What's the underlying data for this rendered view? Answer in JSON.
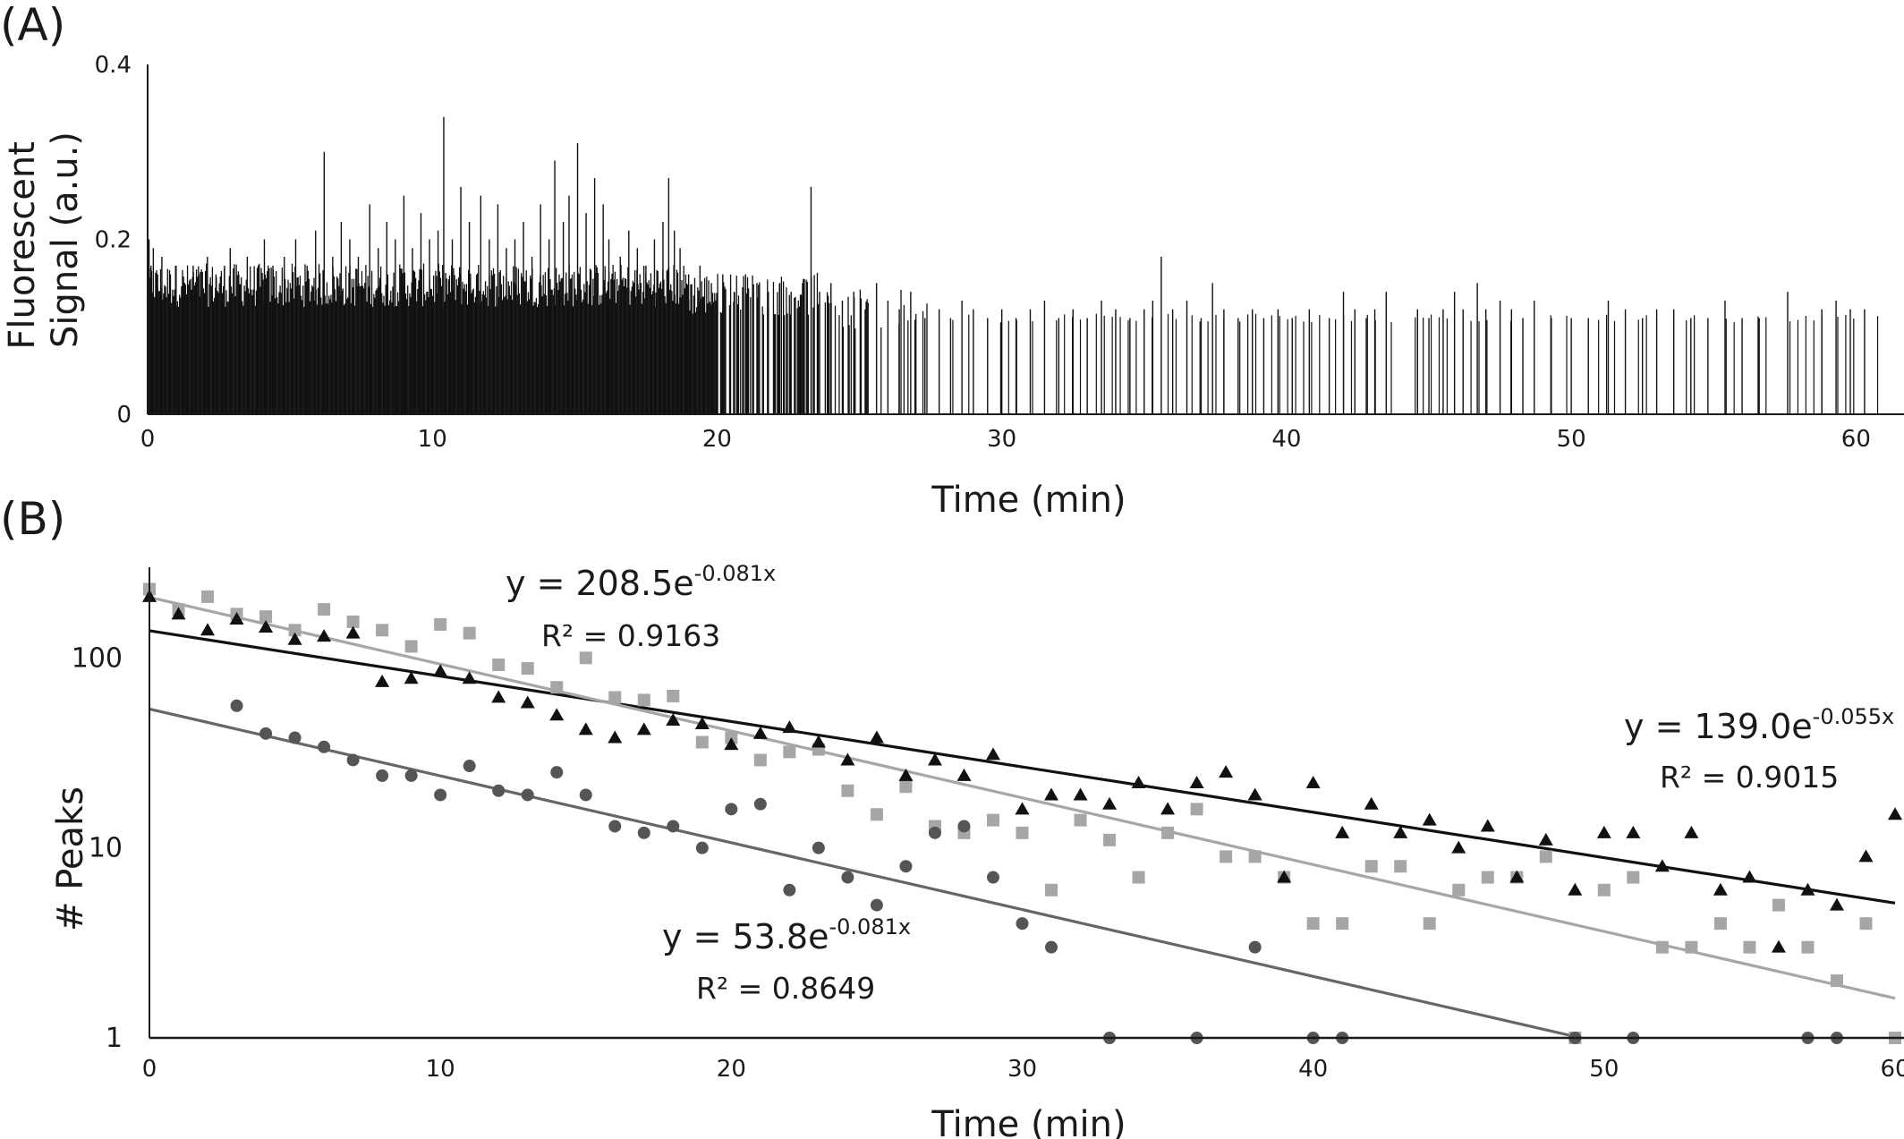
{
  "panel_a": {
    "label": "(A)",
    "chart_data": {
      "type": "bar",
      "title": "",
      "xlabel": "Time (min)",
      "ylabel": "Fluorescent Signal (a.u.)",
      "xlim": [
        0,
        62
      ],
      "ylim": [
        0,
        0.4
      ],
      "x_ticks": [
        "0",
        "10",
        "20",
        "30",
        "40",
        "50",
        "60"
      ],
      "y_ticks": [
        "0",
        "0.2",
        "0.4"
      ],
      "grid": false,
      "series_color": "#111111",
      "peaks": [
        [
          0.05,
          0.2
        ],
        [
          0.12,
          0.17
        ],
        [
          0.2,
          0.19
        ],
        [
          0.35,
          0.16
        ],
        [
          0.5,
          0.18
        ],
        [
          0.8,
          0.16
        ],
        [
          1.0,
          0.17
        ],
        [
          1.3,
          0.15
        ],
        [
          1.6,
          0.17
        ],
        [
          1.8,
          0.16
        ],
        [
          2.1,
          0.18
        ],
        [
          2.4,
          0.16
        ],
        [
          2.7,
          0.17
        ],
        [
          2.9,
          0.19
        ],
        [
          3.2,
          0.16
        ],
        [
          3.5,
          0.18
        ],
        [
          3.9,
          0.17
        ],
        [
          4.1,
          0.2
        ],
        [
          4.4,
          0.17
        ],
        [
          4.8,
          0.18
        ],
        [
          5.2,
          0.2
        ],
        [
          5.6,
          0.17
        ],
        [
          5.9,
          0.21
        ],
        [
          6.2,
          0.3
        ],
        [
          6.5,
          0.18
        ],
        [
          6.8,
          0.22
        ],
        [
          7.1,
          0.2
        ],
        [
          7.4,
          0.18
        ],
        [
          7.8,
          0.24
        ],
        [
          8.1,
          0.19
        ],
        [
          8.4,
          0.22
        ],
        [
          8.7,
          0.2
        ],
        [
          9.0,
          0.25
        ],
        [
          9.3,
          0.19
        ],
        [
          9.6,
          0.23
        ],
        [
          9.9,
          0.2
        ],
        [
          10.2,
          0.21
        ],
        [
          10.4,
          0.34
        ],
        [
          10.7,
          0.2
        ],
        [
          11.0,
          0.26
        ],
        [
          11.3,
          0.22
        ],
        [
          11.7,
          0.25
        ],
        [
          12.0,
          0.2
        ],
        [
          12.3,
          0.24
        ],
        [
          12.6,
          0.19
        ],
        [
          12.9,
          0.2
        ],
        [
          13.2,
          0.22
        ],
        [
          13.5,
          0.18
        ],
        [
          13.8,
          0.24
        ],
        [
          14.1,
          0.2
        ],
        [
          14.3,
          0.29
        ],
        [
          14.6,
          0.22
        ],
        [
          14.8,
          0.25
        ],
        [
          15.1,
          0.31
        ],
        [
          15.4,
          0.23
        ],
        [
          15.7,
          0.27
        ],
        [
          16.0,
          0.24
        ],
        [
          16.2,
          0.2
        ],
        [
          16.6,
          0.18
        ],
        [
          16.9,
          0.21
        ],
        [
          17.2,
          0.19
        ],
        [
          17.5,
          0.17
        ],
        [
          17.8,
          0.2
        ],
        [
          18.1,
          0.22
        ],
        [
          18.3,
          0.27
        ],
        [
          18.5,
          0.21
        ],
        [
          18.7,
          0.19
        ],
        [
          19.0,
          0.16
        ],
        [
          19.4,
          0.17
        ],
        [
          19.8,
          0.15
        ],
        [
          20.2,
          0.16
        ],
        [
          20.6,
          0.14
        ],
        [
          21.0,
          0.16
        ],
        [
          21.4,
          0.15
        ],
        [
          21.8,
          0.14
        ],
        [
          22.2,
          0.15
        ],
        [
          22.6,
          0.14
        ],
        [
          23.0,
          0.15
        ],
        [
          23.3,
          0.26
        ],
        [
          23.6,
          0.14
        ],
        [
          24.0,
          0.15
        ],
        [
          24.4,
          0.13
        ],
        [
          24.8,
          0.14
        ],
        [
          25.2,
          0.12
        ],
        [
          25.6,
          0.15
        ],
        [
          26.0,
          0.13
        ],
        [
          26.4,
          0.12
        ],
        [
          26.8,
          0.14
        ],
        [
          27.3,
          0.11
        ],
        [
          27.8,
          0.12
        ],
        [
          28.2,
          0.11
        ],
        [
          28.6,
          0.13
        ],
        [
          29.0,
          0.12
        ],
        [
          29.5,
          0.11
        ],
        [
          30.0,
          0.12
        ],
        [
          30.5,
          0.11
        ],
        [
          31.0,
          0.12
        ],
        [
          31.5,
          0.13
        ],
        [
          32.0,
          0.11
        ],
        [
          32.5,
          0.12
        ],
        [
          33.0,
          0.11
        ],
        [
          33.5,
          0.13
        ],
        [
          34.0,
          0.12
        ],
        [
          34.5,
          0.11
        ],
        [
          35.0,
          0.12
        ],
        [
          35.3,
          0.13
        ],
        [
          35.6,
          0.18
        ],
        [
          36.0,
          0.12
        ],
        [
          36.5,
          0.13
        ],
        [
          37.0,
          0.11
        ],
        [
          37.4,
          0.15
        ],
        [
          37.8,
          0.12
        ],
        [
          38.3,
          0.11
        ],
        [
          38.8,
          0.12
        ],
        [
          39.2,
          0.11
        ],
        [
          39.7,
          0.12
        ],
        [
          40.2,
          0.11
        ],
        [
          40.8,
          0.12
        ],
        [
          41.5,
          0.11
        ],
        [
          42.0,
          0.14
        ],
        [
          42.4,
          0.12
        ],
        [
          42.8,
          0.11
        ],
        [
          43.1,
          0.12
        ],
        [
          43.5,
          0.14
        ],
        [
          44.6,
          0.12
        ],
        [
          45.0,
          0.11
        ],
        [
          45.5,
          0.12
        ],
        [
          45.9,
          0.14
        ],
        [
          46.2,
          0.12
        ],
        [
          46.7,
          0.15
        ],
        [
          47.0,
          0.12
        ],
        [
          47.5,
          0.13
        ],
        [
          47.9,
          0.12
        ],
        [
          48.3,
          0.11
        ],
        [
          48.7,
          0.13
        ],
        [
          49.3,
          0.11
        ],
        [
          50.0,
          0.11
        ],
        [
          50.6,
          0.11
        ],
        [
          51.3,
          0.13
        ],
        [
          51.9,
          0.12
        ],
        [
          52.5,
          0.11
        ],
        [
          53.0,
          0.12
        ],
        [
          53.6,
          0.12
        ],
        [
          54.2,
          0.11
        ],
        [
          54.8,
          0.11
        ],
        [
          55.4,
          0.13
        ],
        [
          56.0,
          0.11
        ],
        [
          56.6,
          0.11
        ],
        [
          57.6,
          0.14
        ],
        [
          58.8,
          0.12
        ],
        [
          59.3,
          0.13
        ],
        [
          59.8,
          0.12
        ],
        [
          60.3,
          0.12
        ]
      ]
    }
  },
  "panel_b": {
    "label": "(B)",
    "chart_data": {
      "type": "scatter",
      "title": "",
      "xlabel": "Time (min)",
      "ylabel": "# Peaks",
      "xlim": [
        0,
        60
      ],
      "ylim": [
        1,
        300
      ],
      "yscale": "log",
      "x_ticks": [
        "0",
        "10",
        "20",
        "30",
        "40",
        "50",
        "60"
      ],
      "y_ticks": [
        "1",
        "10",
        "100"
      ],
      "grid": false,
      "series": [
        {
          "marker": "triangle",
          "color": "#111111",
          "trend_line_color": "#111111",
          "equation_prefix": "y = 139.0e",
          "equation_exponent": "-0.055x",
          "r_squared": "R² = 0.9015",
          "fit": {
            "a": 139.0,
            "b": -0.055
          },
          "x": [
            0,
            1,
            2,
            3,
            4,
            5,
            6,
            7,
            8,
            9,
            10,
            11,
            12,
            13,
            14,
            15,
            16,
            17,
            18,
            19,
            20,
            21,
            22,
            23,
            24,
            25,
            26,
            27,
            28,
            29,
            30,
            31,
            32,
            33,
            34,
            35,
            36,
            37,
            38,
            39,
            40,
            41,
            42,
            43,
            44,
            45,
            46,
            47,
            48,
            49,
            50,
            51,
            52,
            53,
            54,
            55,
            56,
            57,
            58,
            59,
            60
          ],
          "y": [
            210,
            170,
            140,
            160,
            145,
            125,
            130,
            135,
            75,
            78,
            85,
            78,
            62,
            58,
            50,
            42,
            38,
            42,
            47,
            45,
            35,
            40,
            43,
            36,
            29,
            38,
            24,
            29,
            24,
            31,
            16,
            19,
            19,
            17,
            22,
            16,
            22,
            25,
            19,
            7,
            22,
            12,
            17,
            12,
            14,
            10,
            13,
            7,
            11,
            6,
            12,
            12,
            8,
            12,
            6,
            7,
            3,
            6,
            5,
            9,
            15
          ]
        },
        {
          "marker": "square",
          "color": "#a6a6a6",
          "trend_line_color": "#a6a6a6",
          "equation_prefix": "y = 208.5e",
          "equation_exponent": "-0.081x",
          "r_squared": "R² = 0.9163",
          "fit": {
            "a": 208.5,
            "b": -0.081
          },
          "x": [
            0,
            1,
            2,
            3,
            4,
            5,
            6,
            7,
            8,
            9,
            10,
            11,
            12,
            13,
            14,
            15,
            16,
            17,
            18,
            19,
            20,
            21,
            22,
            23,
            24,
            25,
            26,
            27,
            28,
            29,
            30,
            31,
            32,
            33,
            34,
            35,
            36,
            37,
            38,
            39,
            40,
            41,
            42,
            43,
            44,
            45,
            46,
            47,
            48,
            49,
            50,
            51,
            52,
            53,
            54,
            55,
            56,
            57,
            58,
            59,
            60
          ],
          "y": [
            230,
            180,
            210,
            170,
            165,
            140,
            180,
            155,
            140,
            115,
            150,
            135,
            92,
            88,
            70,
            100,
            62,
            60,
            63,
            36,
            38,
            29,
            32,
            33,
            20,
            15,
            21,
            13,
            12,
            14,
            12,
            6,
            14,
            11,
            7,
            12,
            16,
            9,
            9,
            7,
            4,
            4,
            8,
            8,
            4,
            6,
            7,
            7,
            9,
            1,
            6,
            7,
            3,
            3,
            4,
            3,
            5,
            3,
            2,
            4,
            1
          ]
        },
        {
          "marker": "circle",
          "color": "#555555",
          "trend_line_color": "#666666",
          "equation_prefix": "y = 53.8e",
          "equation_exponent": "-0.081x",
          "r_squared": "R² = 0.8649",
          "fit": {
            "a": 53.8,
            "b": -0.081
          },
          "x": [
            3,
            4,
            5,
            6,
            7,
            8,
            9,
            10,
            11,
            12,
            13,
            14,
            15,
            16,
            17,
            18,
            19,
            20,
            21,
            22,
            23,
            24,
            25,
            26,
            27,
            28,
            29,
            30,
            31,
            33,
            36,
            38,
            40,
            41,
            49,
            51,
            57,
            58
          ],
          "y": [
            56,
            40,
            38,
            34,
            29,
            24,
            24,
            19,
            27,
            20,
            19,
            25,
            19,
            13,
            12,
            13,
            10,
            16,
            17,
            6,
            10,
            7,
            5,
            8,
            12,
            13,
            7,
            4,
            3,
            1,
            1,
            3,
            1,
            1,
            1,
            1,
            1,
            1
          ]
        }
      ]
    }
  }
}
